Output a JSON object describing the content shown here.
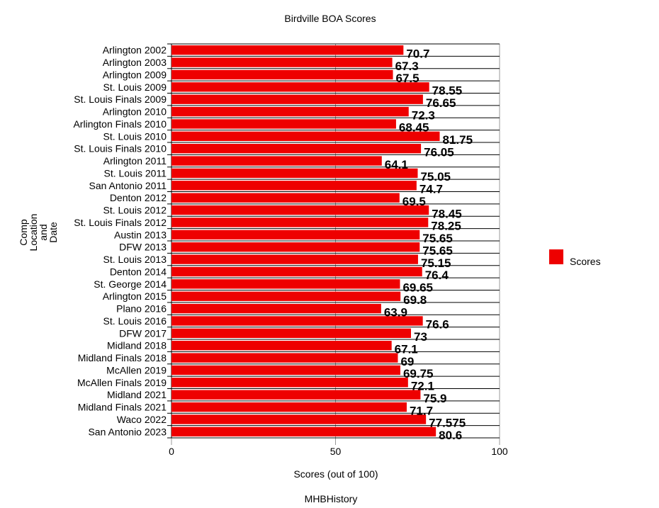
{
  "chart_data": {
    "type": "bar",
    "orientation": "horizontal",
    "title": "Birdville BOA Scores",
    "xlabel": "Scores (out of 100)",
    "ylabel_lines": [
      "Comp",
      "Location",
      "and",
      "Date"
    ],
    "footer": "MHBHistory",
    "xlim": [
      0,
      100
    ],
    "xticks": [
      "0",
      "50",
      "100"
    ],
    "grid": "vertical lines at ticks plus horizontal row separators",
    "legend": {
      "position": "right",
      "entries": [
        "Scores"
      ]
    },
    "series": [
      {
        "name": "Scores",
        "color": "#ee0000",
        "values": [
          70.7,
          67.3,
          67.5,
          78.55,
          76.65,
          72.3,
          68.45,
          81.75,
          76.05,
          64.1,
          75.05,
          74.7,
          69.5,
          78.45,
          78.25,
          75.65,
          75.65,
          75.15,
          76.4,
          69.65,
          69.8,
          63.9,
          76.6,
          73,
          67.1,
          69,
          69.75,
          72.1,
          75.9,
          71.7,
          77.575,
          80.6
        ],
        "labels": [
          "70.7",
          "67.3",
          "67.5",
          "78.55",
          "76.65",
          "72.3",
          "68.45",
          "81.75",
          "76.05",
          "64.1",
          "75.05",
          "74.7",
          "69.5",
          "78.45",
          "78.25",
          "75.65",
          "75.65",
          "75.15",
          "76.4",
          "69.65",
          "69.8",
          "63.9",
          "76.6",
          "73",
          "67.1",
          "69",
          "69.75",
          "72.1",
          "75.9",
          "71.7",
          "77.575",
          "80.6"
        ]
      }
    ],
    "categories": [
      "Arlington 2002",
      "Arlington 2003",
      "Arlington 2009",
      "St. Louis 2009",
      "St. Louis Finals 2009",
      "Arlington 2010",
      "Arlington Finals 2010",
      "St. Louis 2010",
      "St. Louis Finals 2010",
      "Arlington 2011",
      "St. Louis 2011",
      "San Antonio 2011",
      "Denton 2012",
      "St. Louis 2012",
      "St. Louis Finals 2012",
      "Austin 2013",
      "DFW 2013",
      "St. Louis 2013",
      "Denton 2014",
      "St. George 2014",
      "Arlington 2015",
      "Plano 2016",
      "St. Louis 2016",
      "DFW 2017",
      "Midland 2018",
      "Midland Finals 2018",
      "McAllen 2019",
      "McAllen Finals 2019",
      "Midland 2021",
      "Midland Finals 2021",
      "Waco 2022",
      "San Antonio 2023"
    ]
  }
}
